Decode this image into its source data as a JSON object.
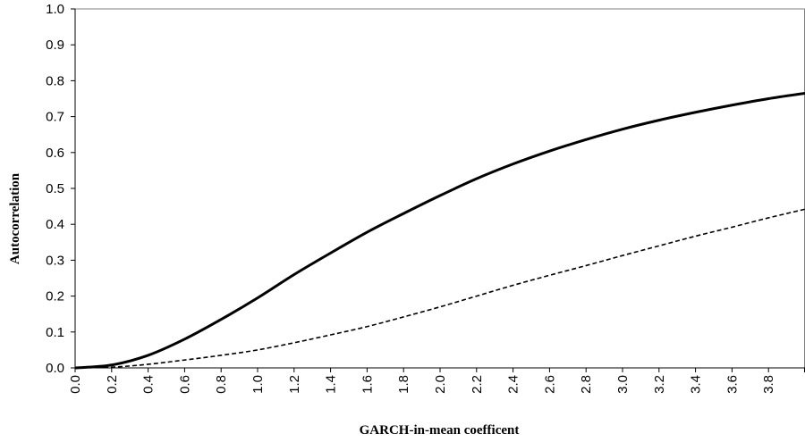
{
  "chart_data": {
    "type": "line",
    "title": "",
    "xlabel": "GARCH-in-mean coefficent",
    "ylabel": "Autocorrelation",
    "xlim": [
      0.0,
      4.0
    ],
    "ylim": [
      0.0,
      1.0
    ],
    "x_ticks": [
      "0.0",
      "0.2",
      "0.4",
      "0.6",
      "0.8",
      "1.0",
      "1.2",
      "1.4",
      "1.6",
      "1.8",
      "2.0",
      "2.2",
      "2.4",
      "2.6",
      "2.8",
      "3.0",
      "3.2",
      "3.4",
      "3.6",
      "3.8"
    ],
    "y_ticks": [
      "0.0",
      "0.1",
      "0.2",
      "0.3",
      "0.4",
      "0.5",
      "0.6",
      "0.7",
      "0.8",
      "0.9",
      "1.0"
    ],
    "grid": false,
    "legend": "none",
    "x": [
      0.0,
      0.2,
      0.4,
      0.6,
      0.8,
      1.0,
      1.2,
      1.4,
      1.6,
      1.8,
      2.0,
      2.2,
      2.4,
      2.6,
      2.8,
      3.0,
      3.2,
      3.4,
      3.6,
      3.8,
      4.0
    ],
    "series": [
      {
        "style": "solid",
        "color": "#000000",
        "values": [
          0.0,
          0.008,
          0.035,
          0.08,
          0.135,
          0.195,
          0.26,
          0.32,
          0.378,
          0.43,
          0.48,
          0.527,
          0.568,
          0.604,
          0.636,
          0.665,
          0.69,
          0.712,
          0.732,
          0.75,
          0.765
        ]
      },
      {
        "style": "dashed",
        "color": "#000000",
        "values": [
          0.0,
          0.002,
          0.01,
          0.022,
          0.035,
          0.05,
          0.07,
          0.092,
          0.115,
          0.142,
          0.17,
          0.2,
          0.23,
          0.258,
          0.285,
          0.313,
          0.34,
          0.367,
          0.392,
          0.418,
          0.442
        ]
      }
    ]
  }
}
